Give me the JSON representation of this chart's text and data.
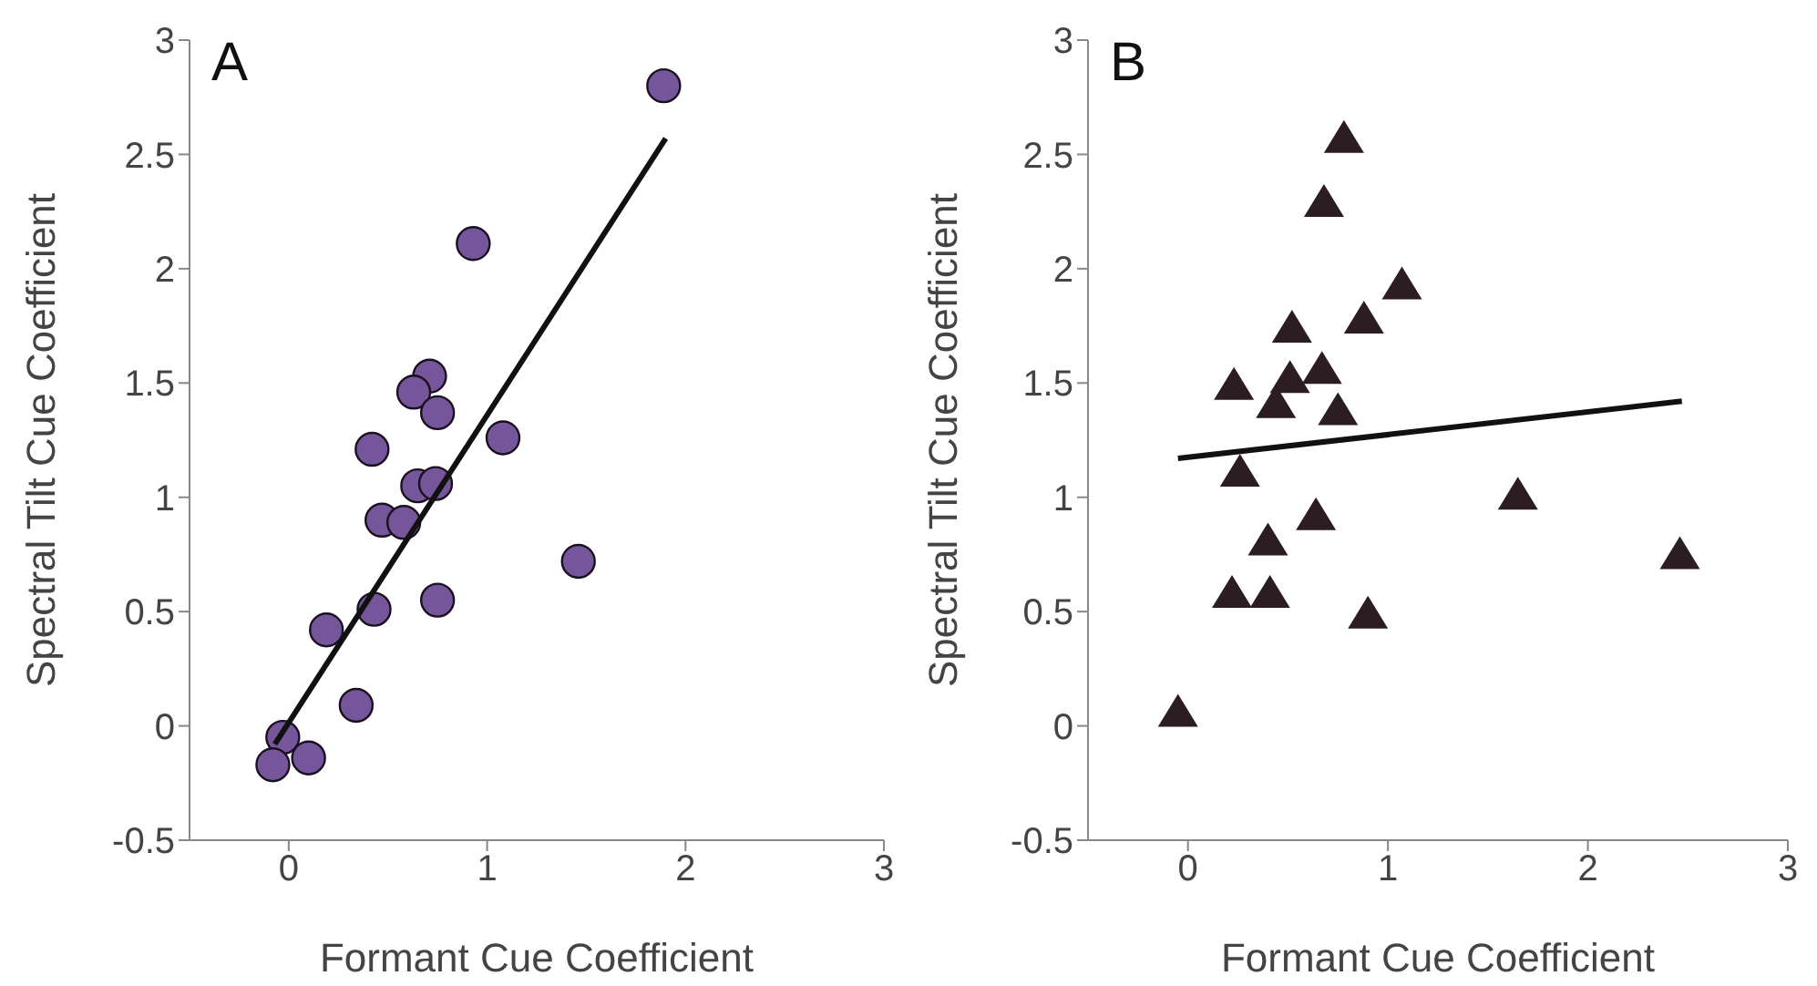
{
  "chart_data": [
    {
      "type": "scatter",
      "title": "A",
      "xlabel": "Formant Cue Coefficient",
      "ylabel": "Spectral Tilt Cue Coefficient",
      "xlim": [
        -0.5,
        3
      ],
      "xticks": [
        0,
        1,
        2,
        3
      ],
      "ylim": [
        -0.5,
        3
      ],
      "yticks": [
        -0.5,
        0,
        0.5,
        1,
        1.5,
        2,
        2.5,
        3
      ],
      "grid": false,
      "legend": false,
      "series": [
        {
          "type": "scatter",
          "marker": "circle",
          "color": "#76569a",
          "x": [
            1.89,
            0.93,
            0.71,
            0.63,
            0.75,
            0.42,
            1.08,
            0.65,
            0.74,
            0.47,
            0.58,
            1.46,
            0.75,
            0.43,
            0.19,
            0.34,
            -0.03,
            -0.08,
            0.1
          ],
          "values": [
            2.8,
            2.11,
            1.53,
            1.46,
            1.37,
            1.21,
            1.26,
            1.05,
            1.06,
            0.9,
            0.89,
            0.72,
            0.55,
            0.51,
            0.42,
            0.09,
            -0.05,
            -0.17,
            -0.14
          ]
        },
        {
          "type": "line",
          "marker": "none",
          "color": "#111111",
          "x": [
            -0.07,
            1.9
          ],
          "values": [
            -0.08,
            2.57
          ]
        }
      ]
    },
    {
      "type": "scatter",
      "title": "B",
      "xlabel": "Formant Cue Coefficient",
      "ylabel": "Spectral Tilt Cue Coefficient",
      "xlim": [
        -0.5,
        3
      ],
      "xticks": [
        0,
        1,
        2,
        3
      ],
      "ylim": [
        -0.5,
        3
      ],
      "yticks": [
        -0.5,
        0,
        0.5,
        1,
        1.5,
        2,
        2.5,
        3
      ],
      "grid": false,
      "legend": false,
      "series": [
        {
          "type": "scatter",
          "marker": "triangle",
          "color": "#2b1d22",
          "x": [
            0.78,
            0.68,
            1.07,
            0.88,
            0.52,
            0.23,
            0.67,
            0.51,
            0.44,
            0.75,
            0.26,
            1.65,
            0.64,
            0.4,
            0.22,
            0.41,
            0.9,
            2.46,
            -0.05
          ],
          "values": [
            2.57,
            2.29,
            1.93,
            1.78,
            1.74,
            1.49,
            1.56,
            1.52,
            1.41,
            1.38,
            1.11,
            1.01,
            0.92,
            0.81,
            0.58,
            0.58,
            0.49,
            0.75,
            0.06
          ]
        },
        {
          "type": "line",
          "marker": "none",
          "color": "#111111",
          "x": [
            -0.05,
            2.47
          ],
          "values": [
            1.17,
            1.42
          ]
        }
      ]
    }
  ]
}
